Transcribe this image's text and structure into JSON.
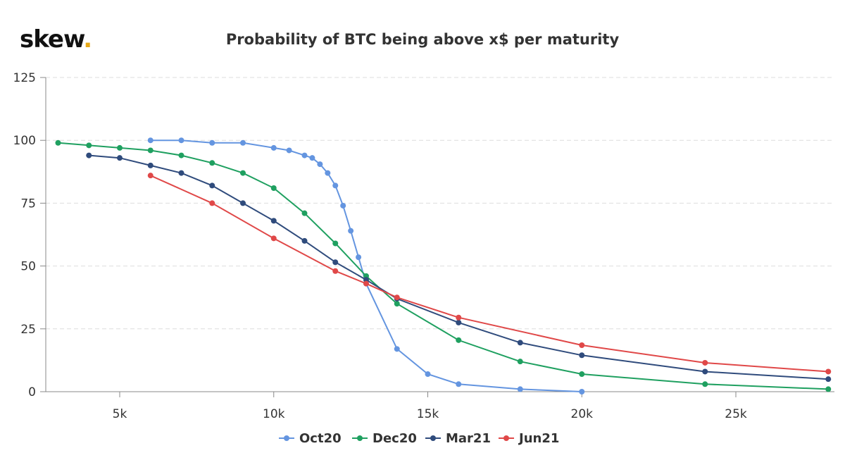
{
  "logo": {
    "text": "skew",
    "dot": "."
  },
  "chart_data": {
    "type": "line",
    "title": "Probability of BTC being above x$ per maturity",
    "xlabel": "",
    "ylabel": "",
    "xlim": [
      2600,
      28200
    ],
    "ylim": [
      0,
      125
    ],
    "x_ticks": [
      5000,
      10000,
      15000,
      20000,
      25000
    ],
    "x_tick_labels": [
      "5k",
      "10k",
      "15k",
      "20k",
      "25k"
    ],
    "y_ticks": [
      0,
      25,
      50,
      75,
      100,
      125
    ],
    "y_tick_labels": [
      "0",
      "25",
      "50",
      "75",
      "100",
      "125"
    ],
    "grid": "horizontal-dashed",
    "legend_position": "bottom-center",
    "series": [
      {
        "name": "Oct20",
        "color": "#6495e0",
        "points": [
          [
            6000,
            100
          ],
          [
            7000,
            100
          ],
          [
            8000,
            99
          ],
          [
            9000,
            99
          ],
          [
            10000,
            97
          ],
          [
            10500,
            96
          ],
          [
            11000,
            94
          ],
          [
            11250,
            93
          ],
          [
            11500,
            90.5
          ],
          [
            11750,
            87
          ],
          [
            12000,
            82
          ],
          [
            12250,
            74
          ],
          [
            12500,
            64
          ],
          [
            12750,
            53.5
          ],
          [
            13000,
            43
          ],
          [
            14000,
            17
          ],
          [
            15000,
            7
          ],
          [
            16000,
            3
          ],
          [
            18000,
            1
          ],
          [
            20000,
            0
          ]
        ]
      },
      {
        "name": "Dec20",
        "color": "#1fa060",
        "points": [
          [
            3000,
            99
          ],
          [
            4000,
            98
          ],
          [
            5000,
            97
          ],
          [
            6000,
            96
          ],
          [
            7000,
            94
          ],
          [
            8000,
            91
          ],
          [
            9000,
            87
          ],
          [
            10000,
            81
          ],
          [
            11000,
            71
          ],
          [
            12000,
            59
          ],
          [
            13000,
            46
          ],
          [
            14000,
            35
          ],
          [
            16000,
            20.5
          ],
          [
            18000,
            12
          ],
          [
            20000,
            7
          ],
          [
            24000,
            3
          ],
          [
            28000,
            1
          ]
        ]
      },
      {
        "name": "Mar21",
        "color": "#2f4b7c",
        "points": [
          [
            4000,
            94
          ],
          [
            5000,
            93
          ],
          [
            6000,
            90
          ],
          [
            7000,
            87
          ],
          [
            8000,
            82
          ],
          [
            9000,
            75
          ],
          [
            10000,
            68
          ],
          [
            11000,
            60
          ],
          [
            12000,
            51.5
          ],
          [
            13000,
            44.5
          ],
          [
            14000,
            37
          ],
          [
            16000,
            27.5
          ],
          [
            18000,
            19.5
          ],
          [
            20000,
            14.5
          ],
          [
            24000,
            8
          ],
          [
            28000,
            5
          ]
        ]
      },
      {
        "name": "Jun21",
        "color": "#e04848",
        "points": [
          [
            6000,
            86
          ],
          [
            8000,
            75
          ],
          [
            10000,
            61
          ],
          [
            12000,
            48
          ],
          [
            13000,
            43
          ],
          [
            14000,
            37.5
          ],
          [
            16000,
            29.5
          ],
          [
            20000,
            18.5
          ],
          [
            24000,
            11.5
          ],
          [
            28000,
            8
          ]
        ]
      }
    ]
  }
}
